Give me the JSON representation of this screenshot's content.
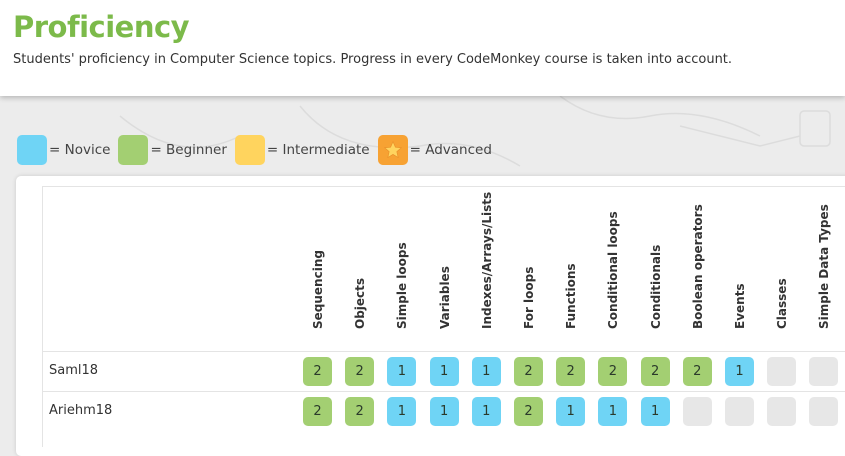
{
  "header": {
    "title": "Proficiency",
    "subtitle": "Students' proficiency in Computer Science topics. Progress in every CodeMonkey course is taken into account."
  },
  "legend": [
    {
      "label": "= Novice",
      "color": "#6fd4f5",
      "icon": ""
    },
    {
      "label": "= Beginner",
      "color": "#a3cf72",
      "icon": ""
    },
    {
      "label": "= Intermediate",
      "color": "#ffd45e",
      "icon": ""
    },
    {
      "label": "= Advanced",
      "color": "#f7a233",
      "icon": "star-icon"
    }
  ],
  "columns": [
    "Sequencing",
    "Objects",
    "Simple loops",
    "Variables",
    "Indexes/Arrays/Lists",
    "For loops",
    "Functions",
    "Conditional loops",
    "Conditionals",
    "Boolean operators",
    "Events",
    "Classes",
    "Simple Data Types"
  ],
  "rows": [
    {
      "name": "Saml18",
      "levels": [
        "2",
        "2",
        "1",
        "1",
        "1",
        "2",
        "2",
        "2",
        "2",
        "2",
        "1",
        "",
        ""
      ]
    },
    {
      "name": "Ariehm18",
      "levels": [
        "2",
        "2",
        "1",
        "1",
        "1",
        "2",
        "1",
        "1",
        "1",
        "",
        "",
        "",
        ""
      ]
    }
  ]
}
